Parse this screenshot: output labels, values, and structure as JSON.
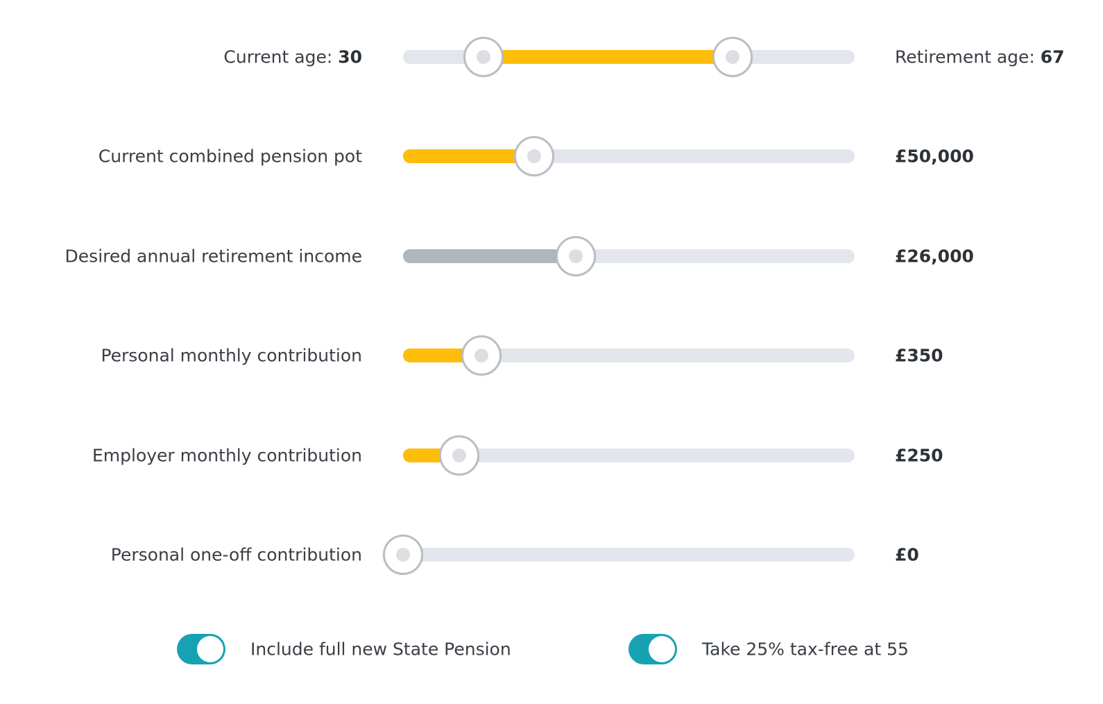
{
  "colors": {
    "accent_fill": "#fdbd0a",
    "muted_fill": "#adb7bc",
    "track": "#e3e6ed",
    "toggle_on": "#17a2b3"
  },
  "age": {
    "current_label": "Current age:",
    "current_value": "30",
    "retirement_label": "Retirement age:",
    "retirement_value": "67",
    "current_position": 0.178,
    "retirement_position": 0.73
  },
  "sliders": [
    {
      "label": "Current combined pension pot",
      "value": "£50,000",
      "position": 0.291,
      "fill": "accent"
    },
    {
      "label": "Desired annual retirement income",
      "value": "£26,000",
      "position": 0.383,
      "fill": "muted"
    },
    {
      "label": "Personal monthly contribution",
      "value": "£350",
      "position": 0.174,
      "fill": "accent"
    },
    {
      "label": "Employer monthly contribution",
      "value": "£250",
      "position": 0.124,
      "fill": "accent"
    },
    {
      "label": "Personal one-off contribution",
      "value": "£0",
      "position": 0.0,
      "fill": "accent"
    }
  ],
  "toggles": [
    {
      "label": "Include full new State Pension",
      "on": true
    },
    {
      "label": "Take 25% tax-free at 55",
      "on": true
    }
  ]
}
